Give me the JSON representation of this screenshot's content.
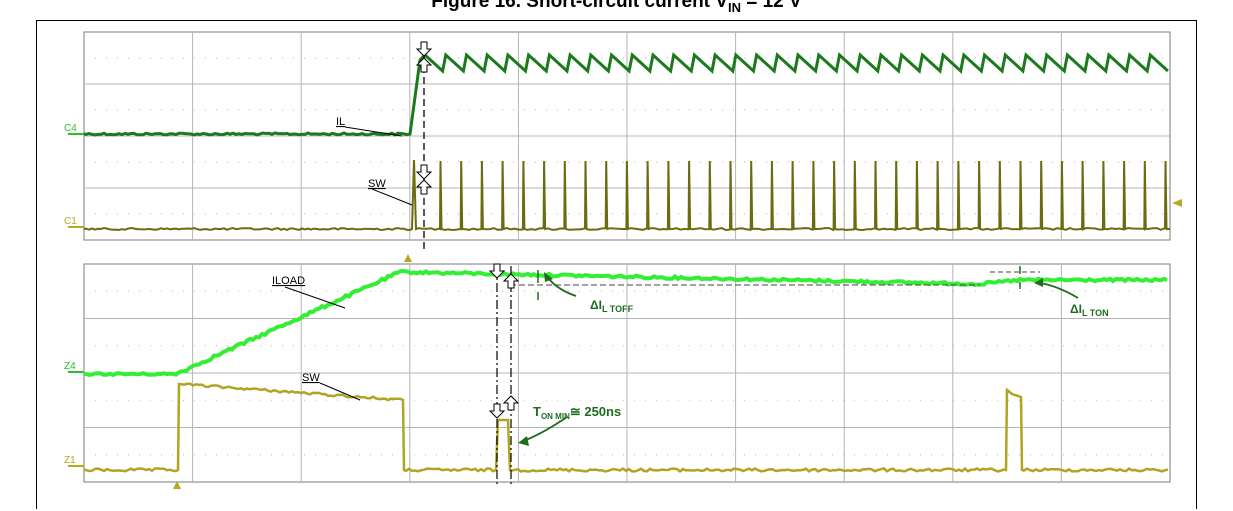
{
  "figure": {
    "caption_prefix": "Figure 16. Short-circuit current V",
    "caption_sub": "IN",
    "caption_suffix": " = 12 V"
  },
  "colors": {
    "il": "#1b7a1b",
    "sw": "#6b6b10",
    "iload": "#33ee33",
    "sw_zoom": "#b0a423",
    "marker_c": "#27c227",
    "marker_z": "#b8a820",
    "grid": "#b4b4b4",
    "annotation": "#1f6b1f"
  },
  "chart_data": [
    {
      "type": "line",
      "panel": "top",
      "grid": {
        "divisions_x": 10,
        "divisions_y": 8
      },
      "channel_markers": [
        "C4",
        "C1"
      ],
      "series": [
        {
          "name": "IL",
          "channel": "C4",
          "shape": "flat level, steep rise at the short-circuit event, then sawtooth ripple near the top of the screen",
          "level_before_div": 0.0,
          "level_after_div": 2.5,
          "ripple_peaks": 36
        },
        {
          "name": "SW",
          "channel": "C1",
          "shape": "flat level, then narrow switching spikes",
          "level_div": 0.0,
          "spike_height_div": 2.2,
          "spike_count": 36
        }
      ],
      "annotations": [
        "IL",
        "SW"
      ]
    },
    {
      "type": "line",
      "panel": "bottom",
      "grid": {
        "divisions_x": 10,
        "divisions_y": 8
      },
      "channel_markers": [
        "Z4",
        "Z1"
      ],
      "series": [
        {
          "name": "ILOAD",
          "channel": "Z4",
          "shape": "flat, linear ramp up, then slowly decaying plateau",
          "start_div": 0.0,
          "plateau_div": 3.5
        },
        {
          "name": "SW",
          "channel": "Z1",
          "shape": "low level with on-pulses; first pulse long, then minimum on-time pulses",
          "high_div": 2.9
        }
      ],
      "annotations": {
        "iload_label": "ILOAD",
        "sw_label": "SW",
        "toff_delta": "ΔI",
        "toff_sub": "L TOFF",
        "ton_delta": "ΔI",
        "ton_sub": "L TON",
        "ton_min_prefix": "T",
        "ton_min_sub": "ON MIN",
        "ton_min_suffix": "≅ 250ns"
      }
    }
  ]
}
